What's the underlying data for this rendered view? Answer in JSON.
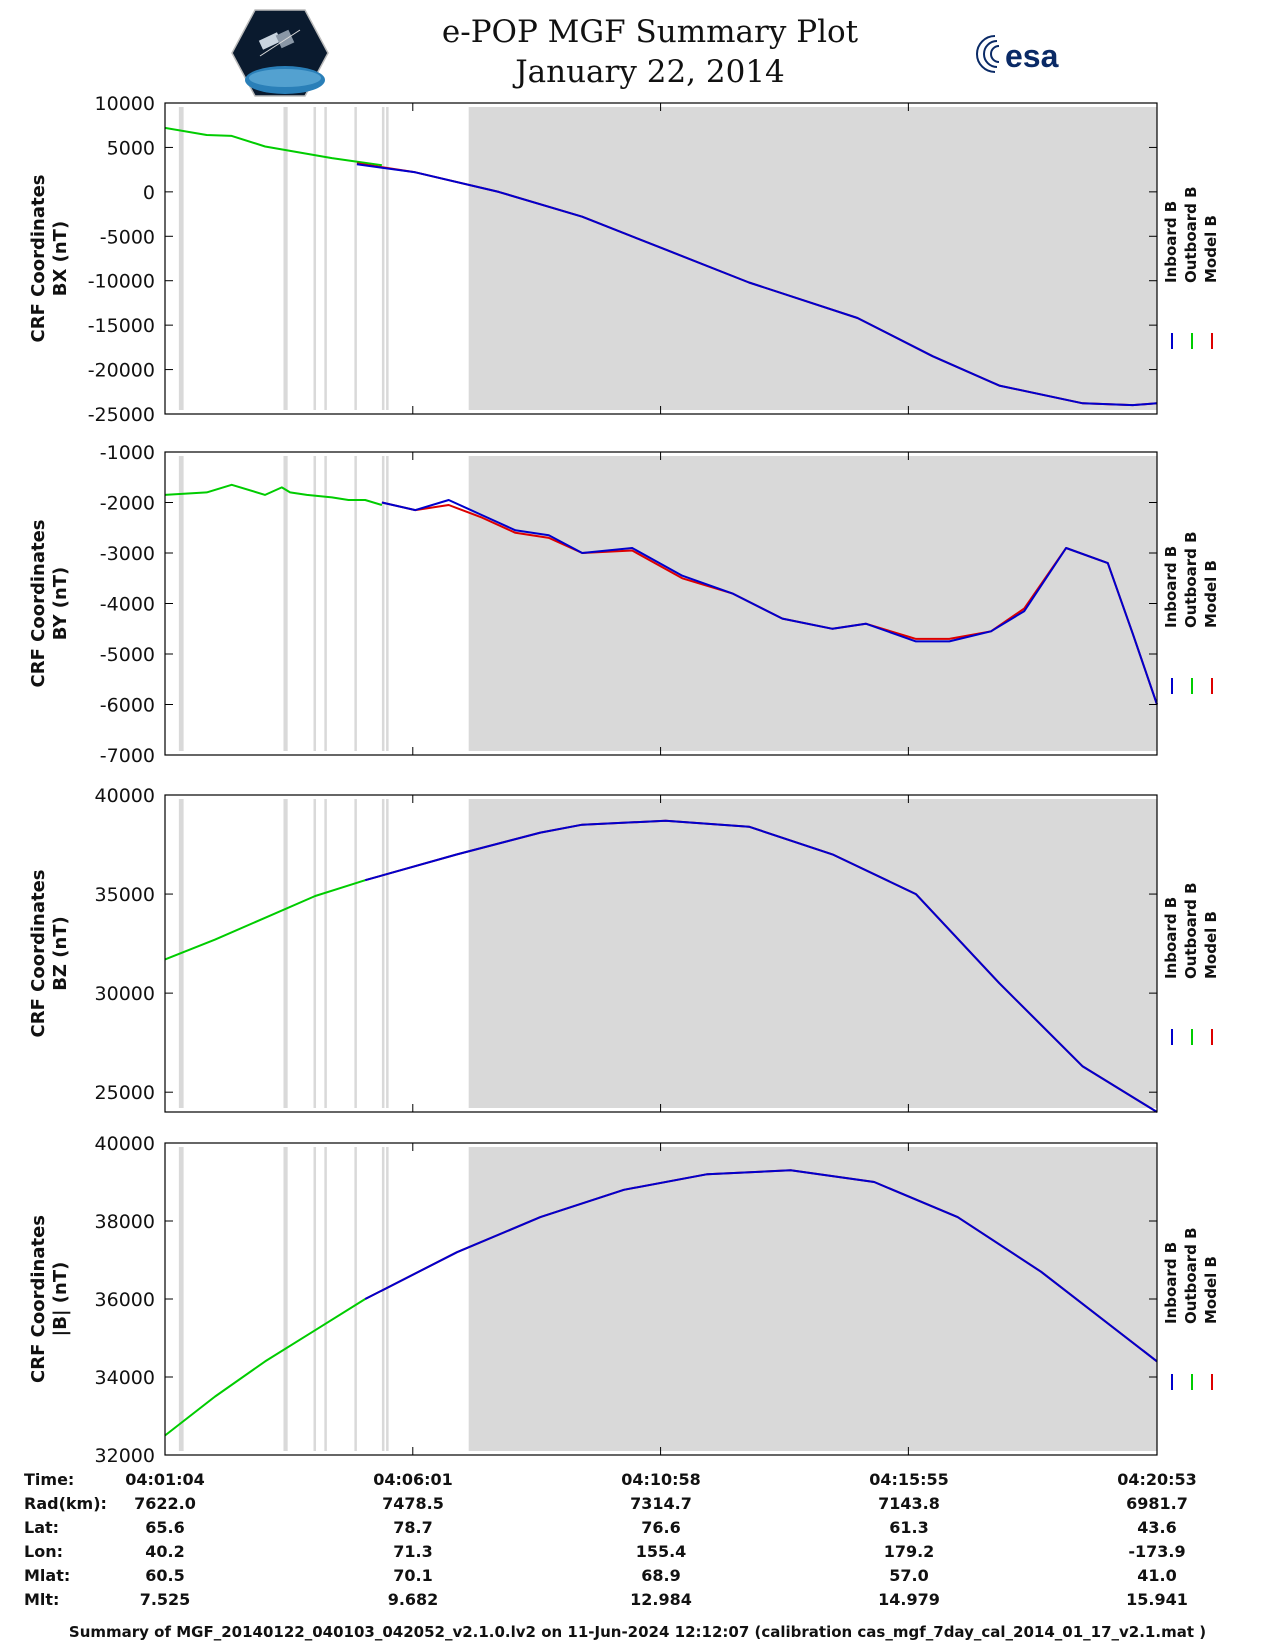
{
  "header": {
    "title_line1": "e-POP MGF Summary Plot",
    "title_line2": "January 22, 2014",
    "logo_left": "cassiope-satellite-logo",
    "logo_right": "esa-logo"
  },
  "colors": {
    "inboard": "#0000cc",
    "outboard": "#00cc00",
    "model": "#dd0000",
    "shade": "#d9d9d9"
  },
  "legend": [
    "Inboard B",
    "Outboard B",
    "Model B"
  ],
  "chart_data": [
    {
      "type": "line",
      "ylabel": [
        "CRF Coordinates",
        "BX (nT)"
      ],
      "ylim": [
        -25000,
        10000
      ],
      "yticks": [
        "10000",
        "5000",
        "0",
        "-5000",
        "-10000",
        "-15000",
        "-20000",
        "-25000"
      ],
      "xlim": [
        0,
        1189
      ],
      "xticks_min": [
        0,
        297,
        594,
        891,
        1189
      ],
      "shaded_intervals_min": [
        [
          16.6,
          22.3
        ],
        [
          142,
          147
        ],
        [
          178,
          181
        ],
        [
          191,
          194
        ],
        [
          227,
          230
        ],
        [
          260,
          263
        ],
        [
          265,
          268
        ],
        [
          364,
          1189
        ]
      ],
      "series": [
        {
          "name": "Outboard B",
          "x": [
            0,
            50,
            80,
            120,
            200,
            260
          ],
          "y": [
            7200,
            6400,
            6300,
            5100,
            3800,
            3000
          ]
        },
        {
          "name": "Model B",
          "x": [
            230,
            300,
            400,
            500,
            600,
            700,
            830,
            920,
            1000,
            1100,
            1160,
            1189
          ],
          "y": [
            3200,
            2200,
            0,
            -2800,
            -6500,
            -10200,
            -14200,
            -18500,
            -21800,
            -23800,
            -24000,
            -23800
          ]
        },
        {
          "name": "Inboard B",
          "x": [
            230,
            300,
            400,
            500,
            600,
            700,
            830,
            920,
            1000,
            1100,
            1160,
            1189
          ],
          "y": [
            3100,
            2200,
            0,
            -2800,
            -6500,
            -10200,
            -14200,
            -18500,
            -21800,
            -23800,
            -24000,
            -23800
          ]
        }
      ]
    },
    {
      "type": "line",
      "ylabel": [
        "CRF Coordinates",
        "BY (nT)"
      ],
      "ylim": [
        -7000,
        -1000
      ],
      "yticks": [
        "-1000",
        "-2000",
        "-3000",
        "-4000",
        "-5000",
        "-6000",
        "-7000"
      ],
      "xlim": [
        0,
        1189
      ],
      "xticks_min": [
        0,
        297,
        594,
        891,
        1189
      ],
      "shaded_intervals_min": [
        [
          16.6,
          22.3
        ],
        [
          142,
          147
        ],
        [
          178,
          181
        ],
        [
          191,
          194
        ],
        [
          227,
          230
        ],
        [
          260,
          263
        ],
        [
          265,
          268
        ],
        [
          364,
          1189
        ]
      ],
      "series": [
        {
          "name": "Outboard B",
          "x": [
            0,
            50,
            80,
            120,
            140,
            150,
            170,
            200,
            220,
            240,
            260
          ],
          "y": [
            -1850,
            -1800,
            -1650,
            -1850,
            -1700,
            -1800,
            -1850,
            -1900,
            -1950,
            -1950,
            -2050
          ]
        },
        {
          "name": "Model B",
          "x": [
            260,
            300,
            340,
            380,
            420,
            460,
            500,
            560,
            620,
            680,
            740,
            800,
            840,
            900,
            940,
            990,
            1030,
            1080,
            1130,
            1160,
            1189
          ],
          "y": [
            -2000,
            -2150,
            -2050,
            -2300,
            -2600,
            -2700,
            -3000,
            -2950,
            -3500,
            -3800,
            -4300,
            -4500,
            -4400,
            -4700,
            -4700,
            -4550,
            -4100,
            -2900,
            -3200,
            -4600,
            -6000
          ]
        },
        {
          "name": "Inboard B",
          "x": [
            260,
            300,
            340,
            380,
            420,
            460,
            500,
            560,
            620,
            680,
            740,
            800,
            840,
            900,
            940,
            990,
            1030,
            1080,
            1130,
            1160,
            1189
          ],
          "y": [
            -2000,
            -2150,
            -1950,
            -2250,
            -2550,
            -2650,
            -3000,
            -2900,
            -3450,
            -3800,
            -4300,
            -4500,
            -4400,
            -4750,
            -4750,
            -4550,
            -4150,
            -2900,
            -3200,
            -4600,
            -6000
          ]
        }
      ]
    },
    {
      "type": "line",
      "ylabel": [
        "CRF Coordinates",
        "BZ (nT)"
      ],
      "ylim": [
        24000,
        40000
      ],
      "yticks": [
        "40000",
        "35000",
        "30000",
        "25000"
      ],
      "xlim": [
        0,
        1189
      ],
      "xticks_min": [
        0,
        297,
        594,
        891,
        1189
      ],
      "shaded_intervals_min": [
        [
          16.6,
          22.3
        ],
        [
          142,
          147
        ],
        [
          178,
          181
        ],
        [
          191,
          194
        ],
        [
          227,
          230
        ],
        [
          260,
          263
        ],
        [
          265,
          268
        ],
        [
          364,
          1189
        ]
      ],
      "series": [
        {
          "name": "Outboard B",
          "x": [
            0,
            60,
            120,
            180,
            240
          ],
          "y": [
            31700,
            32700,
            33800,
            34900,
            35700
          ]
        },
        {
          "name": "Model B",
          "x": [
            240,
            350,
            450,
            500,
            600,
            700,
            800,
            900,
            1000,
            1100,
            1189
          ],
          "y": [
            35700,
            37000,
            38100,
            38500,
            38700,
            38400,
            37000,
            35000,
            30500,
            26300,
            24000
          ]
        },
        {
          "name": "Inboard B",
          "x": [
            240,
            350,
            450,
            500,
            600,
            700,
            800,
            900,
            1000,
            1100,
            1189
          ],
          "y": [
            35700,
            37000,
            38100,
            38500,
            38700,
            38400,
            37000,
            35000,
            30500,
            26300,
            24000
          ]
        }
      ]
    },
    {
      "type": "line",
      "ylabel": [
        "CRF Coordinates",
        "|B| (nT)"
      ],
      "ylim": [
        32000,
        40000
      ],
      "yticks": [
        "40000",
        "38000",
        "36000",
        "34000",
        "32000"
      ],
      "xlim": [
        0,
        1189
      ],
      "xticks_min": [
        0,
        297,
        594,
        891,
        1189
      ],
      "shaded_intervals_min": [
        [
          16.6,
          22.3
        ],
        [
          142,
          147
        ],
        [
          178,
          181
        ],
        [
          191,
          194
        ],
        [
          227,
          230
        ],
        [
          260,
          263
        ],
        [
          265,
          268
        ],
        [
          364,
          1189
        ]
      ],
      "series": [
        {
          "name": "Outboard B",
          "x": [
            0,
            60,
            120,
            180,
            240
          ],
          "y": [
            32500,
            33500,
            34400,
            35200,
            36000
          ]
        },
        {
          "name": "Model B",
          "x": [
            240,
            350,
            450,
            550,
            650,
            750,
            850,
            950,
            1050,
            1189
          ],
          "y": [
            36000,
            37200,
            38100,
            38800,
            39200,
            39300,
            39000,
            38100,
            36700,
            34400
          ]
        },
        {
          "name": "Inboard B",
          "x": [
            240,
            350,
            450,
            550,
            650,
            750,
            850,
            950,
            1050,
            1189
          ],
          "y": [
            36000,
            37200,
            38100,
            38800,
            39200,
            39300,
            39000,
            38100,
            36700,
            34400
          ]
        }
      ]
    }
  ],
  "info_table": {
    "rows": [
      {
        "label": "Time:",
        "values": [
          "04:01:04",
          "04:06:01",
          "04:10:58",
          "04:15:55",
          "04:20:53"
        ]
      },
      {
        "label": "Rad(km):",
        "values": [
          "7622.0",
          "7478.5",
          "7314.7",
          "7143.8",
          "6981.7"
        ]
      },
      {
        "label": "Lat:",
        "values": [
          "65.6",
          "78.7",
          "76.6",
          "61.3",
          "43.6"
        ]
      },
      {
        "label": "Lon:",
        "values": [
          "40.2",
          "71.3",
          "155.4",
          "179.2",
          "-173.9"
        ]
      },
      {
        "label": "Mlat:",
        "values": [
          "60.5",
          "70.1",
          "68.9",
          "57.0",
          "41.0"
        ]
      },
      {
        "label": "Mlt:",
        "values": [
          "7.525",
          "9.682",
          "12.984",
          "14.979",
          "15.941"
        ]
      }
    ]
  },
  "footer": "Summary of MGF_20140122_040103_042052_v2.1.0.lv2 on 11-Jun-2024 12:12:07 (calibration cas_mgf_7day_cal_2014_01_17_v2.1.mat )"
}
